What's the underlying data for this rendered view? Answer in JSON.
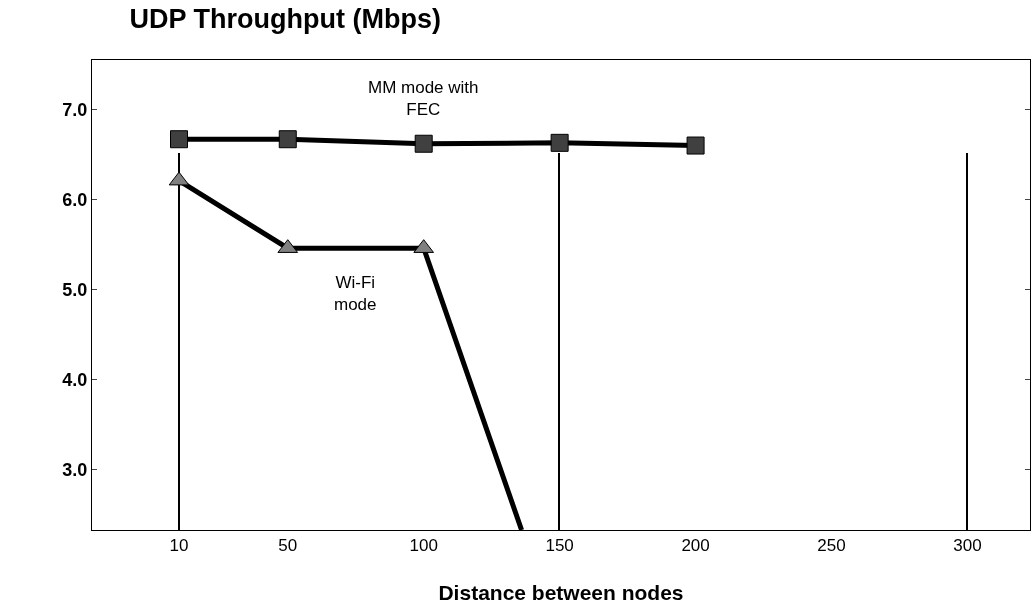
{
  "chart_data": {
    "type": "line",
    "title": "UDP Throughput (Mbps)",
    "xlabel": "Distance between nodes",
    "xlim": [
      -22,
      323
    ],
    "xticks": [
      10,
      50,
      100,
      150,
      200,
      250,
      300
    ],
    "ylim": [
      2.33,
      7.55
    ],
    "yticks": [
      {
        "value": 3,
        "label": "3.0"
      },
      {
        "value": 4,
        "label": "4.0"
      },
      {
        "value": 5,
        "label": "5.0"
      },
      {
        "value": 6,
        "label": "6.0"
      },
      {
        "value": 7,
        "label": "7.0"
      }
    ],
    "line_style": "solid",
    "series": [
      {
        "type": "bar",
        "color": "#000000",
        "x": [
          10,
          150,
          300
        ],
        "values": [
          6.52,
          6.52,
          6.52
        ]
      },
      {
        "name": "MM mode with\nFEC",
        "color": "#404040",
        "marker": "square",
        "x": [
          10,
          50,
          100,
          150,
          200
        ],
        "values": [
          6.67,
          6.67,
          6.62,
          6.63,
          6.6
        ]
      },
      {
        "name": "Wi-Fi\nmode",
        "color": "#808080",
        "marker": "triangle",
        "x": [
          10,
          50,
          100,
          136
        ],
        "values": [
          6.21,
          5.46,
          5.46,
          2.33
        ]
      }
    ]
  }
}
